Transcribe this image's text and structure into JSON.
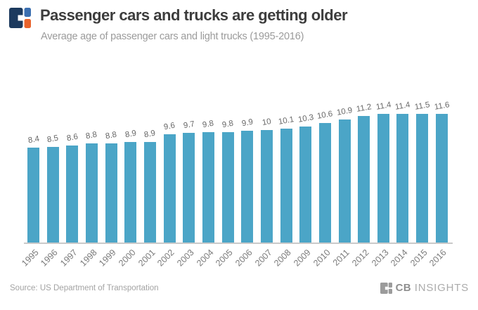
{
  "header": {
    "title": "Passenger cars and trucks are getting older",
    "subtitle": "Average age of passenger cars and light trucks (1995-2016)"
  },
  "brand": {
    "navy": "#1c3a5e",
    "blue": "#3b6fb0",
    "orange": "#e8632c",
    "gray": "#9b9b9b"
  },
  "chart_data": {
    "type": "bar",
    "title": "Passenger cars and trucks are getting older",
    "subtitle": "Average age of passenger cars and light trucks (1995-2016)",
    "categories": [
      "1995",
      "1996",
      "1997",
      "1998",
      "1999",
      "2000",
      "2001",
      "2002",
      "2003",
      "2004",
      "2005",
      "2006",
      "2007",
      "2008",
      "2009",
      "2010",
      "2011",
      "2012",
      "2013",
      "2014",
      "2015",
      "2016"
    ],
    "values": [
      8.4,
      8.5,
      8.6,
      8.8,
      8.8,
      8.9,
      8.9,
      9.6,
      9.7,
      9.8,
      9.8,
      9.9,
      10,
      10.1,
      10.3,
      10.6,
      10.9,
      11.2,
      11.4,
      11.4,
      11.5,
      11.6
    ],
    "xlabel": "",
    "ylabel": "",
    "ylim": [
      0,
      12.5
    ],
    "grid": false,
    "legend": false,
    "value_labels_shown": true,
    "bar_color": "#4ba5c7",
    "axis_line_color": "#c9c9c9"
  },
  "footer": {
    "source": "Source: US Department of Transportation",
    "brand_cb": "CB",
    "brand_insights": "INSIGHTS"
  }
}
